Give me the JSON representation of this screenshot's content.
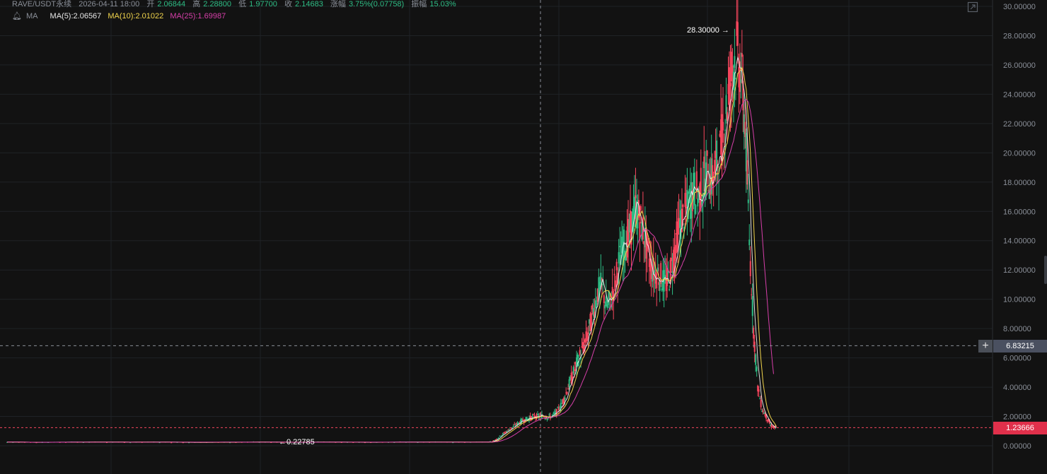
{
  "header": {
    "symbol": "RAVE/USDT永续",
    "datetime": "2026-04-11 18:00",
    "open_label": "开",
    "open_value": "2.06844",
    "high_label": "高",
    "high_value": "2.28800",
    "low_label": "低",
    "low_value": "1.97700",
    "close_label": "收",
    "close_value": "2.14683",
    "change_label": "涨幅",
    "change_value": "3.75%(0.07758)",
    "amp_label": "振幅",
    "amp_value": "15.03%"
  },
  "ma_legend": {
    "indicator": "MA",
    "ma5": "MA(5):2.06567",
    "ma10": "MA(10):2.01022",
    "ma25": "MA(25):1.69987"
  },
  "colors": {
    "background": "#121212",
    "grid": "#1f2226",
    "up": "#2ebd85",
    "down": "#f6465d",
    "ma5": "#f5f5f5",
    "ma10": "#f0d44c",
    "ma25": "#d63fa9",
    "axis_text": "#8a8f98"
  },
  "annotations": {
    "high_label": "28.30000 →",
    "low_label": "←0.22785"
  },
  "price_tags": {
    "crosshair": "6.83215",
    "last": "1.23666"
  },
  "chart_data": {
    "type": "candlestick",
    "ylim": [
      0,
      30
    ],
    "y_ticks": [
      "30.00000",
      "28.00000",
      "26.00000",
      "24.00000",
      "22.00000",
      "20.00000",
      "18.00000",
      "16.00000",
      "14.00000",
      "12.00000",
      "10.00000",
      "8.00000",
      "6.00000",
      "4.00000",
      "2.00000",
      "0.00000"
    ],
    "y_tick_values": [
      30,
      28,
      26,
      24,
      22,
      20,
      18,
      16,
      14,
      12,
      10,
      8,
      6,
      4,
      2,
      0
    ],
    "crosshair_value": 6.83215,
    "last_price": 1.23666,
    "max_marker": 28.3,
    "min_marker": 0.22785,
    "series": [
      {
        "name": "MA(5)",
        "color": "#f5f5f5"
      },
      {
        "name": "MA(10)",
        "color": "#f0d44c"
      },
      {
        "name": "MA(25)",
        "color": "#d63fa9"
      }
    ],
    "close_trend": [
      0.25,
      0.25,
      0.24,
      0.25,
      0.24,
      0.25,
      0.25,
      0.26,
      0.25,
      0.25,
      0.24,
      0.24,
      0.25,
      0.25,
      0.24,
      0.23,
      0.24,
      0.25,
      0.24,
      0.24,
      0.25,
      0.25,
      0.24,
      0.25,
      0.24,
      0.24,
      0.25,
      0.26,
      0.25,
      0.25,
      0.24,
      0.23,
      0.24,
      0.25,
      0.25,
      0.24,
      0.25,
      0.25,
      0.24,
      0.25,
      0.26,
      0.27,
      0.3,
      0.45,
      0.7,
      0.9,
      1.1,
      1.3,
      1.5,
      1.7,
      1.8,
      1.9,
      2.0,
      2.0,
      2.05,
      1.95,
      2.0,
      2.2,
      2.6,
      3.2,
      4.0,
      4.8,
      5.6,
      6.3,
      7.0,
      8.0,
      9.2,
      10.5,
      11.0,
      9.5,
      9.8,
      11.0,
      12.5,
      13.5,
      14.0,
      15.0,
      16.2,
      15.5,
      14.5,
      13.0,
      12.0,
      11.8,
      11.5,
      11.0,
      11.5,
      13.0,
      14.5,
      15.5,
      16.0,
      16.8,
      17.5,
      17.0,
      18.0,
      18.6,
      18.2,
      19.0,
      20.0,
      22.0,
      24.0,
      26.0,
      27.0,
      25.5,
      22.0,
      14.0,
      8.0,
      4.0,
      2.5,
      2.0,
      1.4,
      1.24
    ],
    "ma25_tail_end": 5.5
  }
}
